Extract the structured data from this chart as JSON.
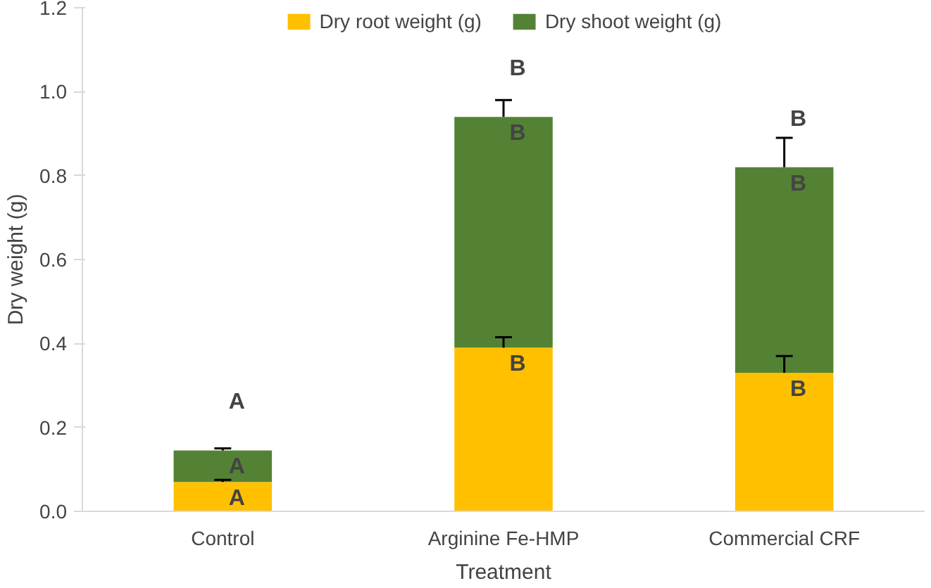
{
  "chart_data": {
    "type": "bar",
    "stacked": true,
    "xlabel": "Treatment",
    "ylabel": "Dry weight (g)",
    "categories": [
      "Control",
      "Arginine Fe-HMP",
      "Commercial CRF"
    ],
    "series": [
      {
        "name": "Dry root weight (g)",
        "color": "#ffc000",
        "values": [
          0.07,
          0.39,
          0.33
        ],
        "errors": [
          0.005,
          0.025,
          0.04
        ]
      },
      {
        "name": "Dry shoot weight (g)",
        "color": "#548235",
        "values": [
          0.075,
          0.55,
          0.49
        ],
        "errors": [
          0.005,
          0.04,
          0.07
        ]
      }
    ],
    "ylim": [
      0,
      1.2
    ],
    "yticks": [
      {
        "value": 0,
        "label": "0.0"
      },
      0.2,
      0.4,
      0.6,
      0.8,
      {
        "value": 1,
        "label": "1.0"
      },
      {
        "value": 1.2,
        "label": "1.2"
      }
    ],
    "grid": false,
    "legend": "top",
    "annotations": [
      {
        "text": "A",
        "x": "Control",
        "y": 0.145
      },
      {
        "text": "A",
        "x": "Control",
        "y": 0.145
      },
      {
        "text": "A",
        "x": "Control",
        "y": 0.07
      },
      {
        "text": "B",
        "x": "Arginine Fe-HMP",
        "y": 0.94
      },
      {
        "text": "B",
        "x": "Arginine Fe-HMP",
        "y": 0.94
      },
      {
        "text": "B",
        "x": "Arginine Fe-HMP",
        "y": 0.39
      },
      {
        "text": "B",
        "x": "Commercial CRF",
        "y": 0.82
      },
      {
        "text": "B",
        "x": "Commercial CRF",
        "y": 0.82
      },
      {
        "text": "B",
        "x": "Commercial CRF",
        "y": 0.33
      }
    ]
  }
}
